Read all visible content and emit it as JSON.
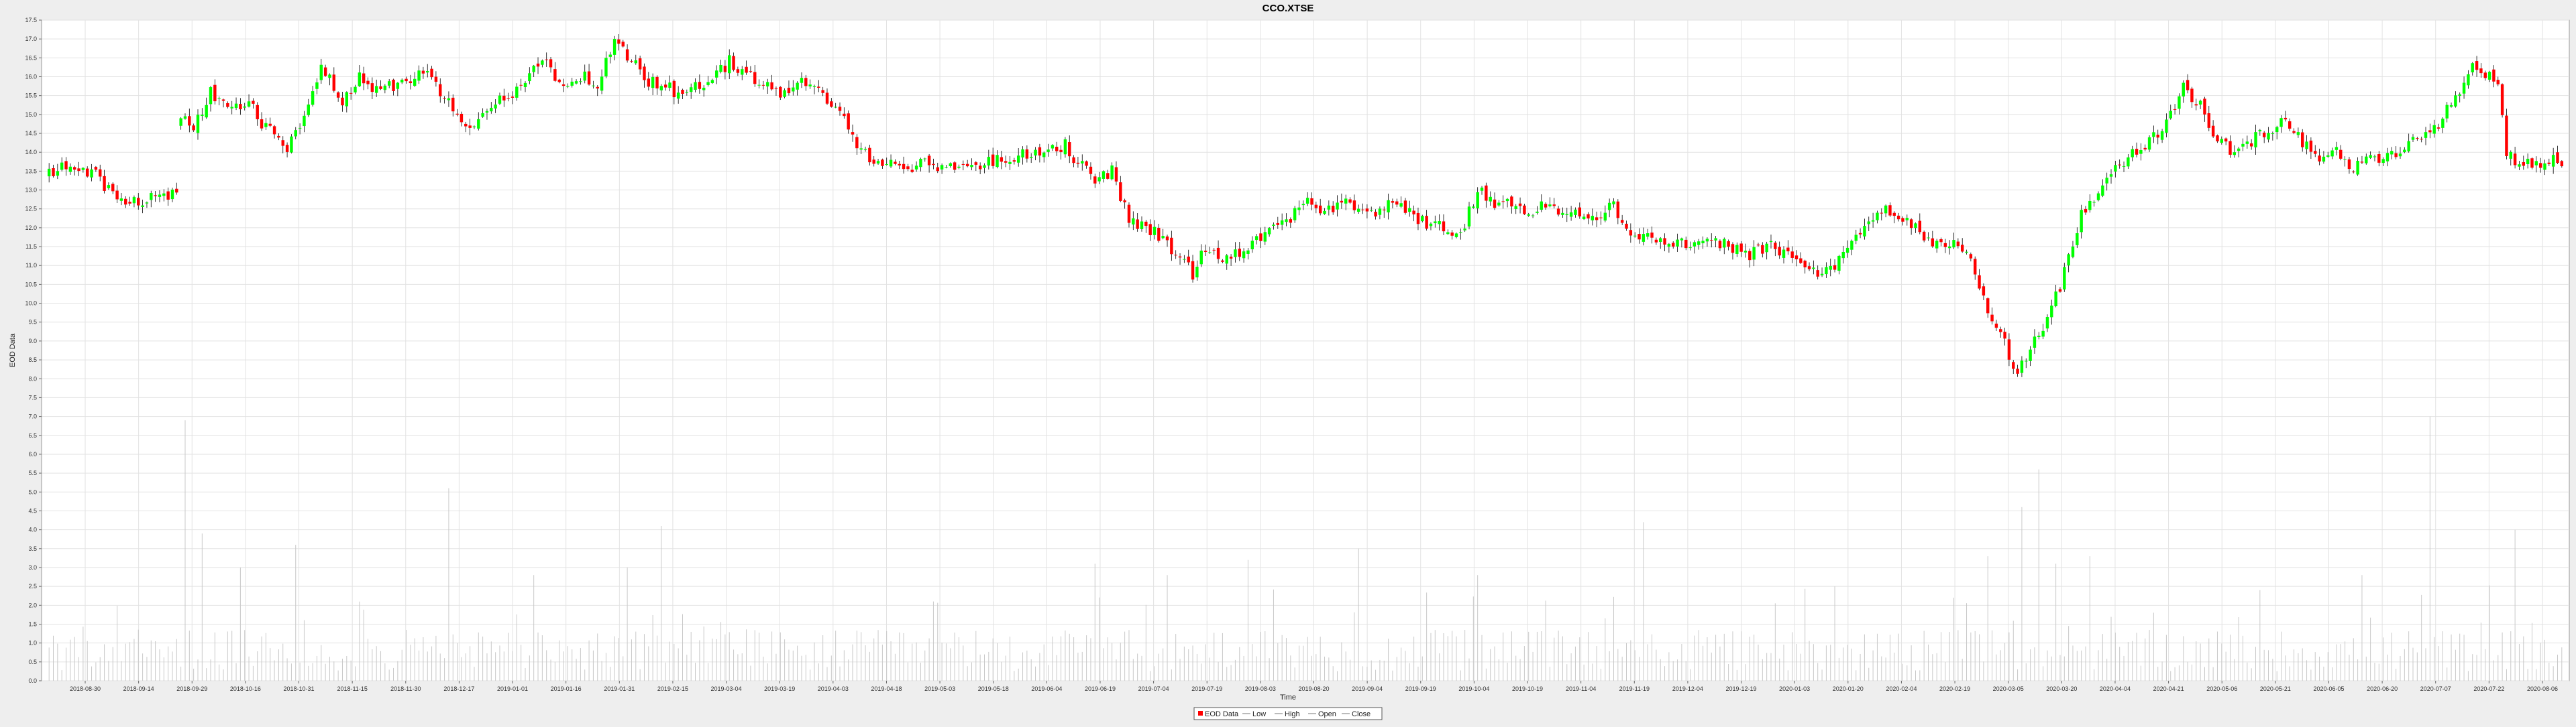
{
  "chart_data": {
    "type": "candlestick",
    "title": "CCO.XTSE",
    "xlabel": "Time",
    "ylabel": "EOD Data",
    "ylim": [
      0.0,
      17.5
    ],
    "y_ticks": [
      "0.0",
      "0.5",
      "1.0",
      "1.5",
      "2.0",
      "2.5",
      "3.0",
      "3.5",
      "4.0",
      "4.5",
      "5.0",
      "5.5",
      "6.0",
      "6.5",
      "7.0",
      "7.5",
      "8.0",
      "8.5",
      "9.0",
      "9.5",
      "10.0",
      "10.5",
      "11.0",
      "11.5",
      "12.0",
      "12.5",
      "13.0",
      "13.5",
      "14.0",
      "14.5",
      "15.0",
      "15.5",
      "16.0",
      "16.5",
      "17.0",
      "17.5"
    ],
    "x_ticks": [
      "2018-08-30",
      "2018-09-14",
      "2018-09-29",
      "2018-10-16",
      "2018-10-31",
      "2018-11-15",
      "2018-11-30",
      "2018-12-17",
      "2019-01-01",
      "2019-01-16",
      "2019-01-31",
      "2019-02-15",
      "2019-03-04",
      "2019-03-19",
      "2019-04-03",
      "2019-04-18",
      "2019-05-03",
      "2019-05-18",
      "2019-06-04",
      "2019-06-19",
      "2019-07-04",
      "2019-07-19",
      "2019-08-03",
      "2019-08-20",
      "2019-09-04",
      "2019-09-19",
      "2019-10-04",
      "2019-10-19",
      "2019-11-04",
      "2019-11-19",
      "2019-12-04",
      "2019-12-19",
      "2020-01-03",
      "2020-01-20",
      "2020-02-04",
      "2020-02-19",
      "2020-03-05",
      "2020-03-20",
      "2020-04-04",
      "2020-04-21",
      "2020-05-06",
      "2020-05-21",
      "2020-06-05",
      "2020-06-20",
      "2020-07-07",
      "2020-07-22",
      "2020-08-06"
    ],
    "close_anchors": [
      [
        0,
        13.5
      ],
      [
        5,
        13.6
      ],
      [
        10,
        13.5
      ],
      [
        14,
        13.0
      ],
      [
        16,
        12.6
      ],
      [
        22,
        12.7
      ],
      [
        26,
        12.9
      ],
      [
        30,
        12.9
      ],
      [
        31,
        14.9
      ],
      [
        34,
        14.6
      ],
      [
        38,
        15.6
      ],
      [
        43,
        15.2
      ],
      [
        47,
        15.3
      ],
      [
        50,
        14.8
      ],
      [
        56,
        14.0
      ],
      [
        60,
        15.0
      ],
      [
        64,
        16.3
      ],
      [
        69,
        15.4
      ],
      [
        73,
        16.0
      ],
      [
        78,
        15.6
      ],
      [
        83,
        15.9
      ],
      [
        89,
        16.1
      ],
      [
        93,
        15.5
      ],
      [
        99,
        14.7
      ],
      [
        104,
        15.3
      ],
      [
        108,
        15.4
      ],
      [
        112,
        16.0
      ],
      [
        117,
        16.4
      ],
      [
        121,
        15.6
      ],
      [
        126,
        16.0
      ],
      [
        129,
        15.8
      ],
      [
        133,
        16.9
      ],
      [
        137,
        16.5
      ],
      [
        141,
        15.9
      ],
      [
        145,
        15.8
      ],
      [
        149,
        15.4
      ],
      [
        152,
        15.7
      ],
      [
        156,
        15.9
      ],
      [
        160,
        16.4
      ],
      [
        164,
        16.1
      ],
      [
        169,
        15.8
      ],
      [
        173,
        15.5
      ],
      [
        177,
        15.8
      ],
      [
        181,
        15.6
      ],
      [
        185,
        15.2
      ],
      [
        189,
        14.4
      ],
      [
        193,
        13.9
      ],
      [
        197,
        13.7
      ],
      [
        201,
        13.6
      ],
      [
        207,
        13.7
      ],
      [
        213,
        13.6
      ],
      [
        219,
        13.7
      ],
      [
        225,
        13.8
      ],
      [
        231,
        14.0
      ],
      [
        235,
        14.1
      ],
      [
        239,
        14.2
      ],
      [
        242,
        13.7
      ],
      [
        246,
        13.3
      ],
      [
        250,
        13.5
      ],
      [
        254,
        12.2
      ],
      [
        258,
        12.0
      ],
      [
        262,
        11.7
      ],
      [
        266,
        11.2
      ],
      [
        269,
        10.8
      ],
      [
        272,
        11.5
      ],
      [
        276,
        11.2
      ],
      [
        280,
        11.4
      ],
      [
        284,
        11.7
      ],
      [
        288,
        12.0
      ],
      [
        292,
        12.3
      ],
      [
        296,
        12.8
      ],
      [
        300,
        12.4
      ],
      [
        304,
        12.6
      ],
      [
        308,
        12.6
      ],
      [
        312,
        12.4
      ],
      [
        316,
        12.7
      ],
      [
        320,
        12.4
      ],
      [
        324,
        12.1
      ],
      [
        328,
        12.0
      ],
      [
        332,
        11.8
      ],
      [
        336,
        13.0
      ],
      [
        340,
        12.7
      ],
      [
        344,
        12.6
      ],
      [
        348,
        12.4
      ],
      [
        352,
        12.7
      ],
      [
        356,
        12.3
      ],
      [
        360,
        12.4
      ],
      [
        364,
        12.2
      ],
      [
        368,
        12.6
      ],
      [
        372,
        11.9
      ],
      [
        376,
        11.8
      ],
      [
        380,
        11.6
      ],
      [
        384,
        11.6
      ],
      [
        388,
        11.5
      ],
      [
        392,
        11.6
      ],
      [
        396,
        11.5
      ],
      [
        400,
        11.3
      ],
      [
        404,
        11.5
      ],
      [
        408,
        11.4
      ],
      [
        412,
        11.0
      ],
      [
        416,
        10.8
      ],
      [
        420,
        11.0
      ],
      [
        424,
        11.5
      ],
      [
        428,
        12.2
      ],
      [
        432,
        12.5
      ],
      [
        436,
        12.2
      ],
      [
        440,
        11.9
      ],
      [
        444,
        11.5
      ],
      [
        448,
        11.7
      ],
      [
        452,
        11.1
      ],
      [
        456,
        9.8
      ],
      [
        460,
        8.9
      ],
      [
        463,
        8.2
      ],
      [
        466,
        8.8
      ],
      [
        470,
        9.5
      ],
      [
        474,
        10.8
      ],
      [
        478,
        12.4
      ],
      [
        482,
        13.0
      ],
      [
        486,
        13.6
      ],
      [
        490,
        14.0
      ],
      [
        494,
        14.3
      ],
      [
        498,
        14.7
      ],
      [
        502,
        15.8
      ],
      [
        506,
        15.2
      ],
      [
        510,
        14.3
      ],
      [
        514,
        14.0
      ],
      [
        518,
        14.3
      ],
      [
        522,
        14.6
      ],
      [
        526,
        14.9
      ],
      [
        530,
        14.3
      ],
      [
        534,
        13.9
      ],
      [
        538,
        14.0
      ],
      [
        542,
        13.6
      ],
      [
        546,
        13.8
      ],
      [
        550,
        13.9
      ],
      [
        554,
        14.1
      ],
      [
        558,
        14.4
      ],
      [
        562,
        14.8
      ],
      [
        566,
        15.5
      ],
      [
        570,
        16.2
      ],
      [
        574,
        16.1
      ],
      [
        576,
        15.8
      ],
      [
        578,
        14.0
      ],
      [
        580,
        13.7
      ],
      [
        584,
        13.7
      ],
      [
        588,
        13.8
      ],
      [
        591,
        13.8
      ]
    ],
    "gaps": [
      [
        30,
        31
      ]
    ],
    "volume_peaks": [
      [
        32,
        6.9
      ],
      [
        36,
        3.9
      ],
      [
        45,
        3.0
      ],
      [
        58,
        3.6
      ],
      [
        94,
        5.1
      ],
      [
        114,
        2.8
      ],
      [
        136,
        3.0
      ],
      [
        144,
        4.1
      ],
      [
        208,
        2.1
      ],
      [
        246,
        3.1
      ],
      [
        263,
        2.8
      ],
      [
        282,
        3.2
      ],
      [
        308,
        3.5
      ],
      [
        336,
        2.8
      ],
      [
        375,
        4.2
      ],
      [
        420,
        2.5
      ],
      [
        448,
        2.2
      ],
      [
        456,
        3.3
      ],
      [
        464,
        4.6
      ],
      [
        468,
        5.6
      ],
      [
        472,
        3.1
      ],
      [
        480,
        3.3
      ],
      [
        520,
        2.4
      ],
      [
        544,
        2.8
      ],
      [
        560,
        7.0
      ],
      [
        580,
        4.0
      ]
    ],
    "legend": [
      "EOD Data",
      "Low",
      "High",
      "Open",
      "Close"
    ],
    "colors": {
      "up": "#00ff00",
      "down": "#ff0000",
      "wick": "#000000",
      "volume": "#c8c8c8",
      "grid": "#e2e2e2",
      "plot_bg": "#ffffff"
    }
  }
}
